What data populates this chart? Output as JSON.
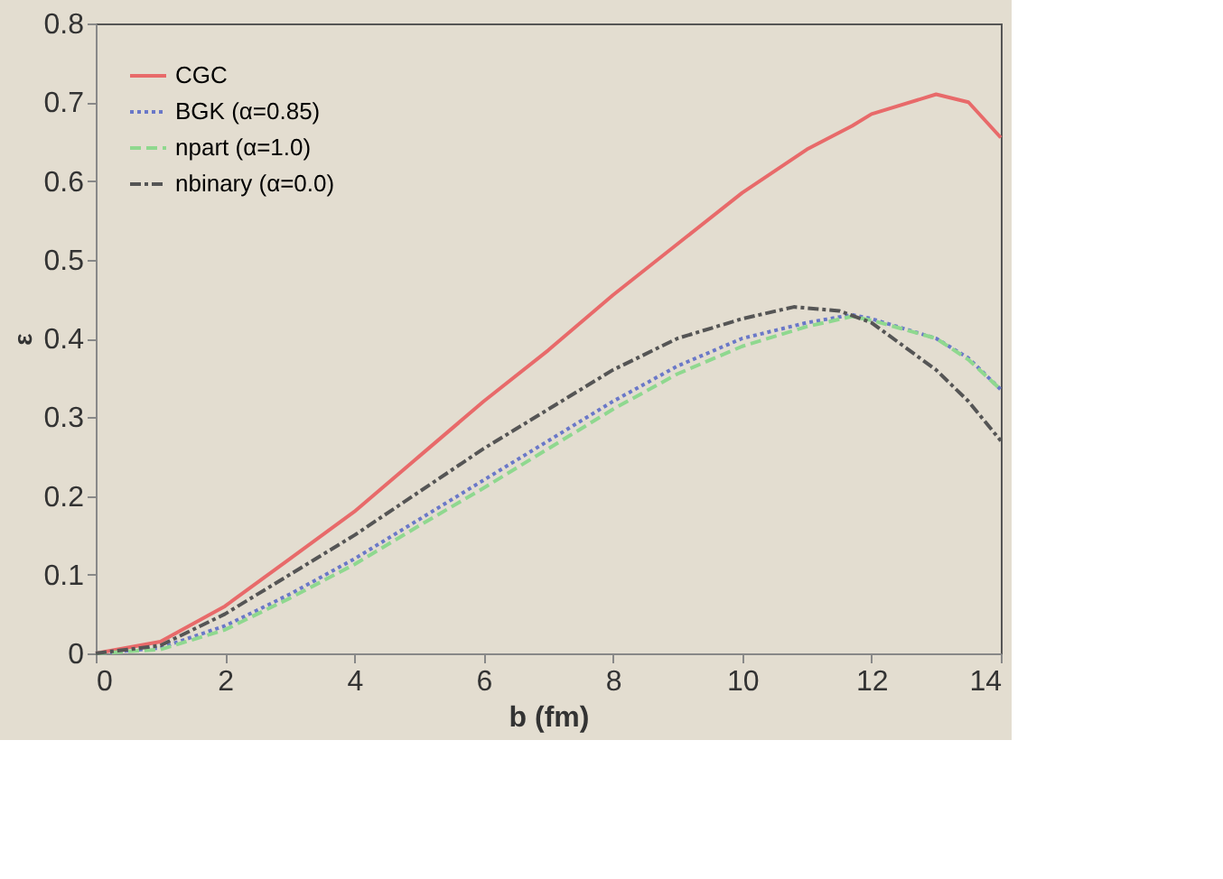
{
  "chart_data": {
    "type": "line",
    "xlabel": "b (fm)",
    "ylabel": "ε",
    "xlim": [
      0,
      14
    ],
    "ylim": [
      0,
      0.8
    ],
    "xticks": [
      0,
      2,
      4,
      6,
      8,
      10,
      12,
      14
    ],
    "yticks": [
      0,
      0.1,
      0.2,
      0.3,
      0.4,
      0.5,
      0.6,
      0.7,
      0.8
    ],
    "grid": false,
    "legend": "top left",
    "marker": "none",
    "x": [
      0,
      1,
      2,
      3,
      4,
      5,
      6,
      7,
      8,
      9,
      10,
      11,
      11.7,
      12,
      13,
      13.5,
      14
    ],
    "series": [
      {
        "name": "CGC",
        "color": "#e86a6a",
        "line_style": "solid",
        "values": [
          0,
          0.015,
          0.06,
          0.12,
          0.18,
          0.25,
          0.32,
          0.385,
          0.455,
          0.52,
          0.585,
          0.64,
          0.67,
          0.685,
          0.71,
          0.7,
          0.655
        ]
      },
      {
        "name": "BGK (α=0.85)",
        "color": "#6a78c8",
        "line_style": "dotted",
        "values": [
          0,
          0.007,
          0.035,
          0.075,
          0.12,
          0.17,
          0.22,
          0.27,
          0.32,
          0.365,
          0.4,
          0.42,
          0.43,
          0.425,
          0.4,
          0.375,
          0.335
        ]
      },
      {
        "name": "npart (α=1.0)",
        "color": "#8fd88f",
        "line_style": "dashed",
        "values": [
          0,
          0.005,
          0.03,
          0.07,
          0.113,
          0.162,
          0.21,
          0.26,
          0.31,
          0.355,
          0.39,
          0.415,
          0.428,
          0.423,
          0.4,
          0.373,
          0.335
        ]
      },
      {
        "name": "nbinary (α=0.0)",
        "color": "#555555",
        "line_style": "dashdot",
        "x": [
          0,
          1,
          2,
          3,
          4,
          5,
          6,
          7,
          8,
          9,
          10,
          10.8,
          11.5,
          12,
          13,
          13.5,
          14
        ],
        "values": [
          0,
          0.01,
          0.05,
          0.1,
          0.15,
          0.205,
          0.26,
          0.31,
          0.36,
          0.4,
          0.425,
          0.44,
          0.435,
          0.42,
          0.36,
          0.32,
          0.27
        ]
      }
    ]
  }
}
